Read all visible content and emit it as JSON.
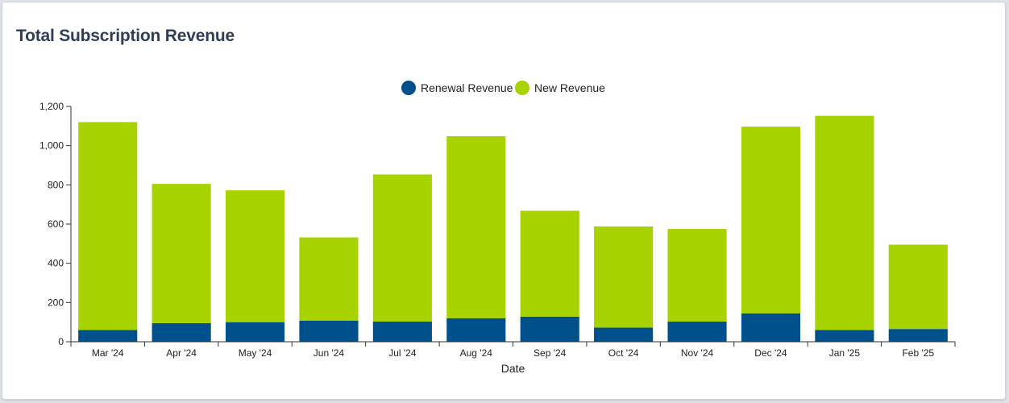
{
  "card": {
    "title": "Total Subscription Revenue"
  },
  "colors": {
    "renewal": "#00508c",
    "new": "#a7d400",
    "axis": "#333333",
    "text": "#222222"
  },
  "chart_data": {
    "type": "bar",
    "stacked": true,
    "title": "Total Subscription Revenue",
    "xlabel": "Date",
    "ylabel": "",
    "ylim": [
      0,
      1200
    ],
    "yticks": [
      0,
      200,
      400,
      600,
      800,
      1000,
      1200
    ],
    "ytick_labels": [
      "0",
      "200",
      "400",
      "600",
      "800",
      "1,000",
      "1,200"
    ],
    "grid": false,
    "legend_position": "top-center",
    "categories": [
      "Mar '24",
      "Apr '24",
      "May '24",
      "Jun '24",
      "Jul '24",
      "Aug '24",
      "Sep '24",
      "Oct '24",
      "Nov '24",
      "Dec '24",
      "Jan '25",
      "Feb '25"
    ],
    "series": [
      {
        "name": "Renewal Revenue",
        "color": "#00508c",
        "values": [
          60,
          95,
          100,
          108,
          103,
          120,
          128,
          72,
          103,
          145,
          60,
          65
        ]
      },
      {
        "name": "New Revenue",
        "color": "#a7d400",
        "values": [
          1060,
          710,
          672,
          424,
          750,
          928,
          540,
          516,
          472,
          952,
          1092,
          430
        ]
      }
    ]
  }
}
